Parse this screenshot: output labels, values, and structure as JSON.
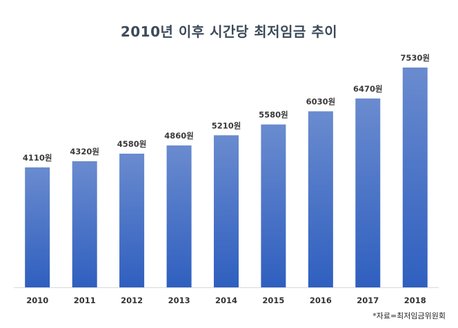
{
  "chart_data": {
    "type": "bar",
    "title": "2010년 이후 시간당 최저임금 추이",
    "categories": [
      "2010",
      "2011",
      "2012",
      "2013",
      "2014",
      "2015",
      "2016",
      "2017",
      "2018"
    ],
    "values": [
      4110,
      4320,
      4580,
      4860,
      5210,
      5580,
      6030,
      6470,
      7530
    ],
    "data_labels": [
      "4110원",
      "4320원",
      "4580원",
      "4860원",
      "5210원",
      "5580원",
      "6030원",
      "6470원",
      "7530원"
    ],
    "ylim": [
      0,
      7530
    ],
    "grid": false,
    "legend": "none",
    "colors": {
      "bar_top": "#6a8bcf",
      "bar_bottom": "#2f5fbf",
      "baseline": "#d9d9d9"
    },
    "source_note": "*자료=최저임금위원회"
  }
}
